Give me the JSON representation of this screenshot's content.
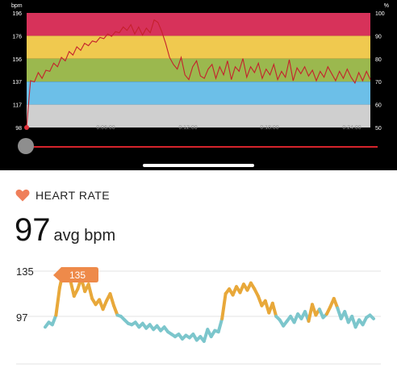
{
  "zones_chart": {
    "left_axis_unit": "bpm",
    "right_axis_unit": "%",
    "left_ticks": [
      "196",
      "176",
      "156",
      "137",
      "117",
      "98"
    ],
    "right_ticks": [
      "100",
      "90",
      "80",
      "70",
      "60",
      "50"
    ],
    "x_ticks": [
      "0:06:00",
      "0:12:00",
      "0:18:00",
      "0:24:00"
    ],
    "zone_colors": [
      "#d7325a",
      "#f0c94f",
      "#9bb84e",
      "#6cbfe8",
      "#cfcfcf"
    ],
    "line_color": "#c5202c",
    "chart_data": {
      "type": "line",
      "y_unit": "bpm",
      "ylim": [
        98,
        196
      ],
      "x_range": [
        "0:00:00",
        "0:27:00"
      ],
      "series": [
        {
          "values": [
            98,
            138,
            137,
            145,
            140,
            147,
            146,
            153,
            150,
            158,
            155,
            163,
            160,
            167,
            164,
            170,
            168,
            172,
            171,
            175,
            174,
            178,
            176,
            180,
            179,
            184,
            181,
            186,
            178,
            184,
            177,
            183,
            179,
            190,
            188,
            180,
            170,
            158,
            152,
            148,
            158,
            143,
            139,
            150,
            155,
            142,
            140,
            148,
            152,
            140,
            150,
            143,
            155,
            139,
            150,
            146,
            157,
            141,
            150,
            145,
            153,
            140,
            148,
            143,
            152,
            139,
            146,
            141,
            156,
            138,
            149,
            144,
            150,
            142,
            147,
            138,
            146,
            141,
            150,
            144,
            138,
            146,
            140,
            148,
            141,
            136,
            145,
            138,
            146,
            139
          ]
        }
      ]
    }
  },
  "header": {
    "heart_icon": "heart-icon",
    "title": "HEART RATE"
  },
  "summary": {
    "avg_value": "97",
    "avg_unit": "avg bpm"
  },
  "hr_chart": {
    "y_labels": [
      "135",
      "97"
    ],
    "callout": "135",
    "colors": {
      "high": "#e8a83a",
      "normal": "#7cc6cc",
      "callout": "#ee8a4a"
    },
    "threshold_bpm": 100,
    "chart_data": {
      "type": "line",
      "y_unit": "bpm",
      "y_ticks": [
        97,
        135
      ],
      "series": [
        {
          "values": [
            88,
            92,
            90,
            98,
            121,
            135,
            133,
            127,
            114,
            120,
            129,
            118,
            124,
            112,
            107,
            111,
            103,
            110,
            116,
            106,
            98,
            97,
            94,
            91,
            90,
            92,
            88,
            91,
            87,
            90,
            86,
            89,
            85,
            88,
            84,
            82,
            80,
            82,
            78,
            81,
            79,
            82,
            77,
            80,
            76,
            86,
            80,
            85,
            84,
            95,
            116,
            120,
            115,
            122,
            117,
            124,
            119,
            125,
            120,
            114,
            106,
            110,
            100,
            108,
            97,
            94,
            89,
            93,
            97,
            92,
            99,
            95,
            101,
            93,
            107,
            98,
            103,
            96,
            99,
            105,
            112,
            104,
            95,
            101,
            92,
            97,
            88,
            94,
            90,
            96,
            98,
            95
          ]
        }
      ]
    }
  }
}
